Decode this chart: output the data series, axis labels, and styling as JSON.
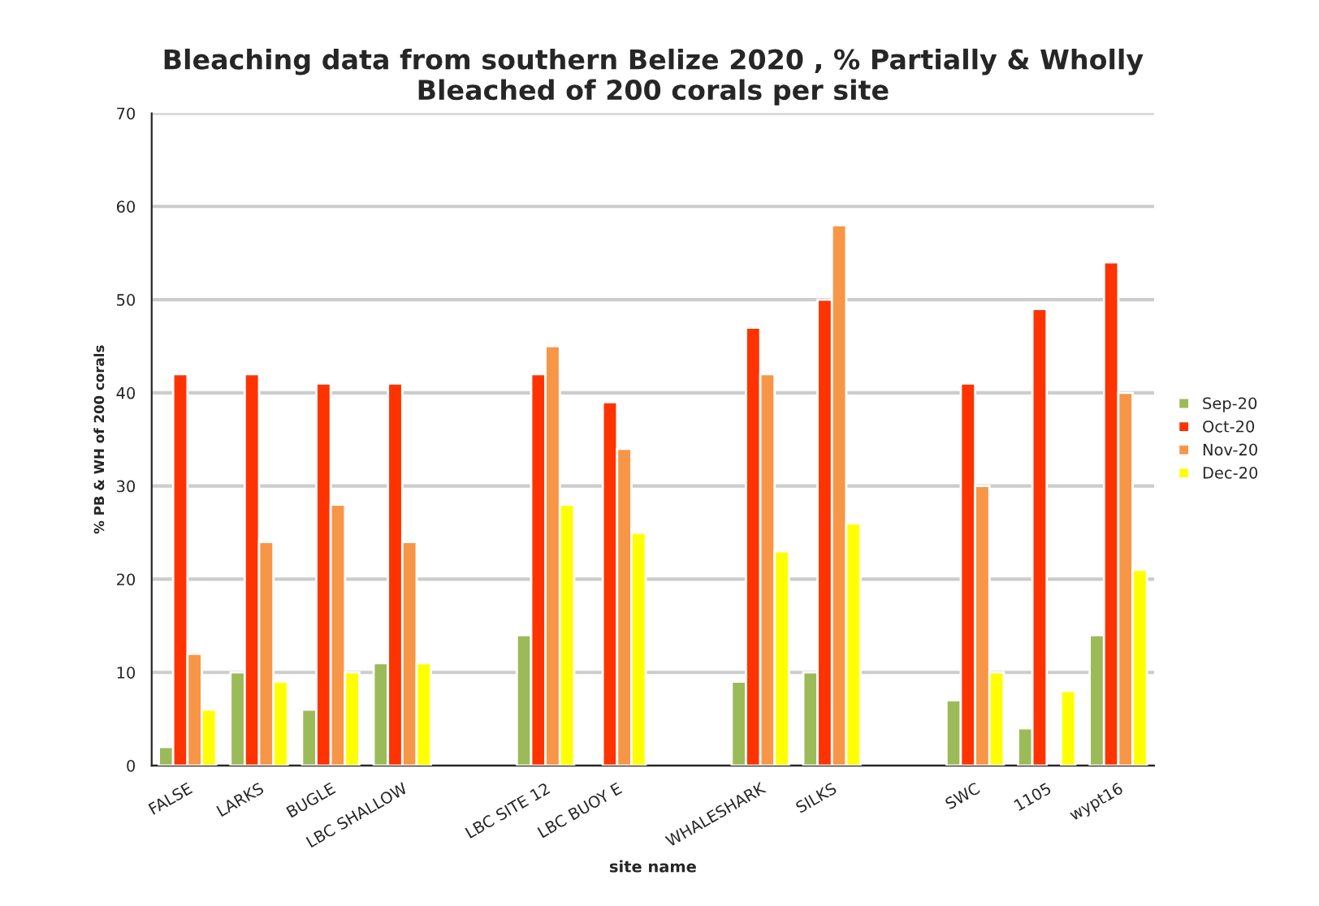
{
  "chart_data": {
    "type": "bar",
    "title": "Bleaching data from southern Belize 2020 , % Partially & Wholly\nBleached of 200 corals per site",
    "xlabel": "site name",
    "ylabel": "% PB & WH of 200 corals",
    "categories": [
      "FALSE",
      "LARKS",
      "BUGLE",
      "LBC SHALLOW",
      null,
      "LBC SITE 12",
      "LBC BUOY E",
      null,
      "WHALESHARK",
      "SILKS",
      null,
      "SWC",
      "1105",
      "wypt16"
    ],
    "series": [
      {
        "name": "Sep-20",
        "color": "#9bbb59",
        "values": [
          2,
          10,
          6,
          11,
          null,
          14,
          null,
          null,
          9,
          10,
          null,
          7,
          4,
          14
        ]
      },
      {
        "name": "Oct-20",
        "color": "#ff3300",
        "values": [
          42,
          42,
          41,
          41,
          null,
          42,
          39,
          null,
          47,
          50,
          null,
          41,
          49,
          54
        ]
      },
      {
        "name": "Nov-20",
        "color": "#f79646",
        "values": [
          12,
          24,
          28,
          24,
          null,
          45,
          34,
          null,
          42,
          58,
          null,
          30,
          null,
          40
        ]
      },
      {
        "name": "Dec-20",
        "color": "#ffff00",
        "values": [
          6,
          9,
          10,
          11,
          null,
          28,
          25,
          null,
          23,
          26,
          null,
          10,
          8,
          21
        ]
      }
    ],
    "ylim": [
      0,
      70
    ],
    "yticks": [
      0,
      10,
      20,
      30,
      40,
      50,
      60,
      70
    ],
    "grid": "y",
    "legend": "right"
  }
}
